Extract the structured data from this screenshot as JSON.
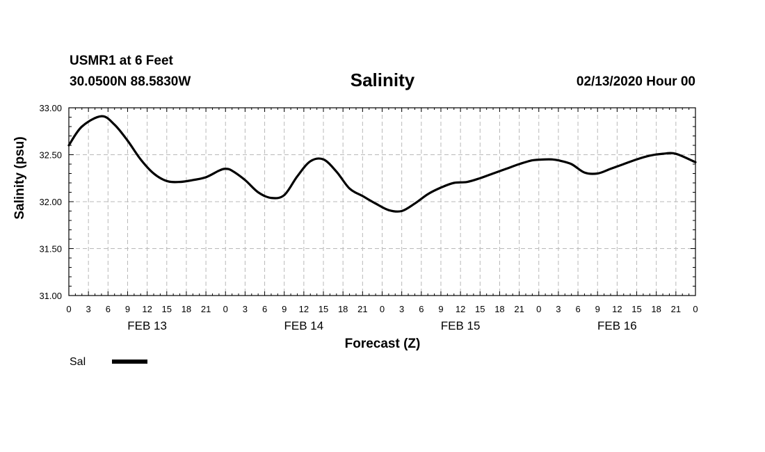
{
  "header": {
    "station": "USMR1 at 6 Feet",
    "coords": "30.0500N 88.5830W",
    "title": "Salinity",
    "timestamp": "02/13/2020 Hour 00"
  },
  "chart_data": {
    "type": "line",
    "title": "Salinity",
    "xlabel": "Forecast (Z)",
    "ylabel": "Salinity (psu)",
    "ylim": [
      31.0,
      33.0
    ],
    "yticks": [
      "31.00",
      "31.50",
      "32.00",
      "32.50",
      "33.00"
    ],
    "xlim": [
      0,
      96
    ],
    "xtick_labels": [
      "0",
      "3",
      "6",
      "9",
      "12",
      "15",
      "18",
      "21",
      "0",
      "3",
      "6",
      "9",
      "12",
      "15",
      "18",
      "21",
      "0",
      "3",
      "6",
      "9",
      "12",
      "15",
      "18",
      "21",
      "0",
      "3",
      "6",
      "9",
      "12",
      "15",
      "18",
      "21",
      "0"
    ],
    "date_labels": [
      {
        "hour": 12,
        "label": "FEB 13"
      },
      {
        "hour": 36,
        "label": "FEB 14"
      },
      {
        "hour": 60,
        "label": "FEB 15"
      },
      {
        "hour": 84,
        "label": "FEB 16"
      }
    ],
    "grid": true,
    "legend": "bottom-left",
    "series": [
      {
        "name": "Sal",
        "x": [
          0,
          2,
          5,
          7,
          9,
          11,
          13,
          15,
          17,
          19,
          21,
          23,
          24,
          25,
          27,
          29,
          31,
          33,
          35,
          37,
          39,
          41,
          43,
          45,
          47,
          49,
          51,
          53,
          55,
          57,
          59,
          61,
          63,
          65,
          67,
          69,
          71,
          73,
          74,
          75,
          77,
          79,
          81,
          83,
          85,
          87,
          89,
          91,
          93,
          96
        ],
        "values": [
          32.6,
          32.8,
          32.91,
          32.82,
          32.65,
          32.45,
          32.3,
          32.22,
          32.21,
          32.23,
          32.26,
          32.33,
          32.35,
          32.33,
          32.23,
          32.1,
          32.04,
          32.07,
          32.27,
          32.43,
          32.45,
          32.32,
          32.14,
          32.06,
          31.98,
          31.91,
          31.9,
          31.98,
          32.08,
          32.15,
          32.2,
          32.21,
          32.25,
          32.3,
          32.35,
          32.4,
          32.44,
          32.45,
          32.45,
          32.44,
          32.4,
          32.31,
          32.3,
          32.35,
          32.4,
          32.45,
          32.49,
          32.51,
          32.51,
          32.42
        ]
      }
    ]
  },
  "legend": {
    "series_label": "Sal",
    "color": "#000000"
  }
}
